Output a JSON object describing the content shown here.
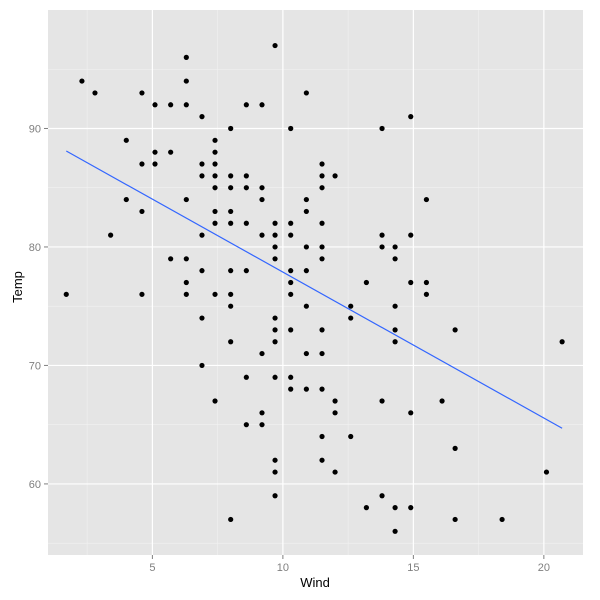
{
  "chart_data": {
    "type": "scatter",
    "title": "",
    "xlabel": "Wind",
    "ylabel": "Temp",
    "xlim": [
      1.0,
      21.5
    ],
    "ylim": [
      54,
      100
    ],
    "x_ticks": [
      5,
      10,
      15,
      20
    ],
    "y_ticks": [
      60,
      70,
      80,
      90
    ],
    "x_tick_labels": [
      "5",
      "10",
      "15",
      "20"
    ],
    "y_tick_labels": [
      "60",
      "70",
      "80",
      "90"
    ],
    "grid": true,
    "legend": "none",
    "colors": {
      "panel": "#e5e5e5",
      "grid_major": "#ffffff",
      "grid_minor": "#f2f2f2",
      "points": "#000000",
      "fit_line": "#3366ff"
    },
    "series": [
      {
        "points": [
          [
            1.7,
            76
          ],
          [
            2.3,
            94
          ],
          [
            2.8,
            93
          ],
          [
            3.4,
            81
          ],
          [
            4.0,
            84
          ],
          [
            4.0,
            89
          ],
          [
            4.6,
            93
          ],
          [
            4.6,
            87
          ],
          [
            4.6,
            83
          ],
          [
            4.6,
            76
          ],
          [
            5.1,
            92
          ],
          [
            5.1,
            88
          ],
          [
            5.1,
            87
          ],
          [
            5.7,
            92
          ],
          [
            5.7,
            88
          ],
          [
            5.7,
            79
          ],
          [
            6.3,
            96
          ],
          [
            6.3,
            94
          ],
          [
            6.3,
            92
          ],
          [
            6.3,
            84
          ],
          [
            6.3,
            79
          ],
          [
            6.3,
            77
          ],
          [
            6.3,
            76
          ],
          [
            6.9,
            91
          ],
          [
            6.9,
            87
          ],
          [
            6.9,
            86
          ],
          [
            6.9,
            81
          ],
          [
            6.9,
            78
          ],
          [
            6.9,
            74
          ],
          [
            6.9,
            70
          ],
          [
            7.4,
            89
          ],
          [
            7.4,
            88
          ],
          [
            7.4,
            87
          ],
          [
            7.4,
            86
          ],
          [
            7.4,
            85
          ],
          [
            7.4,
            83
          ],
          [
            7.4,
            82
          ],
          [
            7.4,
            76
          ],
          [
            7.4,
            67
          ],
          [
            8.0,
            90
          ],
          [
            8.0,
            86
          ],
          [
            8.0,
            85
          ],
          [
            8.0,
            83
          ],
          [
            8.0,
            82
          ],
          [
            8.0,
            78
          ],
          [
            8.0,
            76
          ],
          [
            8.0,
            75
          ],
          [
            8.0,
            72
          ],
          [
            8.0,
            57
          ],
          [
            8.6,
            92
          ],
          [
            8.6,
            86
          ],
          [
            8.6,
            85
          ],
          [
            8.6,
            82
          ],
          [
            8.6,
            78
          ],
          [
            8.6,
            69
          ],
          [
            8.6,
            65
          ],
          [
            9.2,
            92
          ],
          [
            9.2,
            85
          ],
          [
            9.2,
            84
          ],
          [
            9.2,
            81
          ],
          [
            9.2,
            71
          ],
          [
            9.2,
            66
          ],
          [
            9.2,
            65
          ],
          [
            9.7,
            97
          ],
          [
            9.7,
            82
          ],
          [
            9.7,
            81
          ],
          [
            9.7,
            80
          ],
          [
            9.7,
            79
          ],
          [
            9.7,
            74
          ],
          [
            9.7,
            73
          ],
          [
            9.7,
            72
          ],
          [
            9.7,
            69
          ],
          [
            9.7,
            62
          ],
          [
            9.7,
            61
          ],
          [
            9.7,
            59
          ],
          [
            10.3,
            90
          ],
          [
            10.3,
            82
          ],
          [
            10.3,
            81
          ],
          [
            10.3,
            78
          ],
          [
            10.3,
            77
          ],
          [
            10.3,
            76
          ],
          [
            10.3,
            73
          ],
          [
            10.3,
            69
          ],
          [
            10.3,
            68
          ],
          [
            10.9,
            93
          ],
          [
            10.9,
            84
          ],
          [
            10.9,
            83
          ],
          [
            10.9,
            80
          ],
          [
            10.9,
            78
          ],
          [
            10.9,
            75
          ],
          [
            10.9,
            71
          ],
          [
            10.9,
            68
          ],
          [
            11.5,
            87
          ],
          [
            11.5,
            86
          ],
          [
            11.5,
            85
          ],
          [
            11.5,
            82
          ],
          [
            11.5,
            80
          ],
          [
            11.5,
            79
          ],
          [
            11.5,
            73
          ],
          [
            11.5,
            71
          ],
          [
            11.5,
            68
          ],
          [
            11.5,
            64
          ],
          [
            11.5,
            62
          ],
          [
            12.0,
            86
          ],
          [
            12.0,
            67
          ],
          [
            12.0,
            66
          ],
          [
            12.0,
            61
          ],
          [
            12.6,
            75
          ],
          [
            12.6,
            74
          ],
          [
            12.6,
            64
          ],
          [
            13.2,
            77
          ],
          [
            13.2,
            58
          ],
          [
            13.8,
            90
          ],
          [
            13.8,
            81
          ],
          [
            13.8,
            80
          ],
          [
            13.8,
            67
          ],
          [
            13.8,
            59
          ],
          [
            14.3,
            80
          ],
          [
            14.3,
            79
          ],
          [
            14.3,
            75
          ],
          [
            14.3,
            73
          ],
          [
            14.3,
            72
          ],
          [
            14.3,
            58
          ],
          [
            14.3,
            56
          ],
          [
            14.9,
            91
          ],
          [
            14.9,
            81
          ],
          [
            14.9,
            77
          ],
          [
            14.9,
            66
          ],
          [
            14.9,
            58
          ],
          [
            15.5,
            84
          ],
          [
            15.5,
            77
          ],
          [
            15.5,
            76
          ],
          [
            16.1,
            67
          ],
          [
            16.6,
            73
          ],
          [
            16.6,
            63
          ],
          [
            16.6,
            57
          ],
          [
            18.4,
            57
          ],
          [
            20.1,
            61
          ],
          [
            20.7,
            72
          ]
        ]
      }
    ],
    "fit_line": {
      "x1": 1.7,
      "y1": 88.1,
      "x2": 20.7,
      "y2": 64.7
    }
  }
}
